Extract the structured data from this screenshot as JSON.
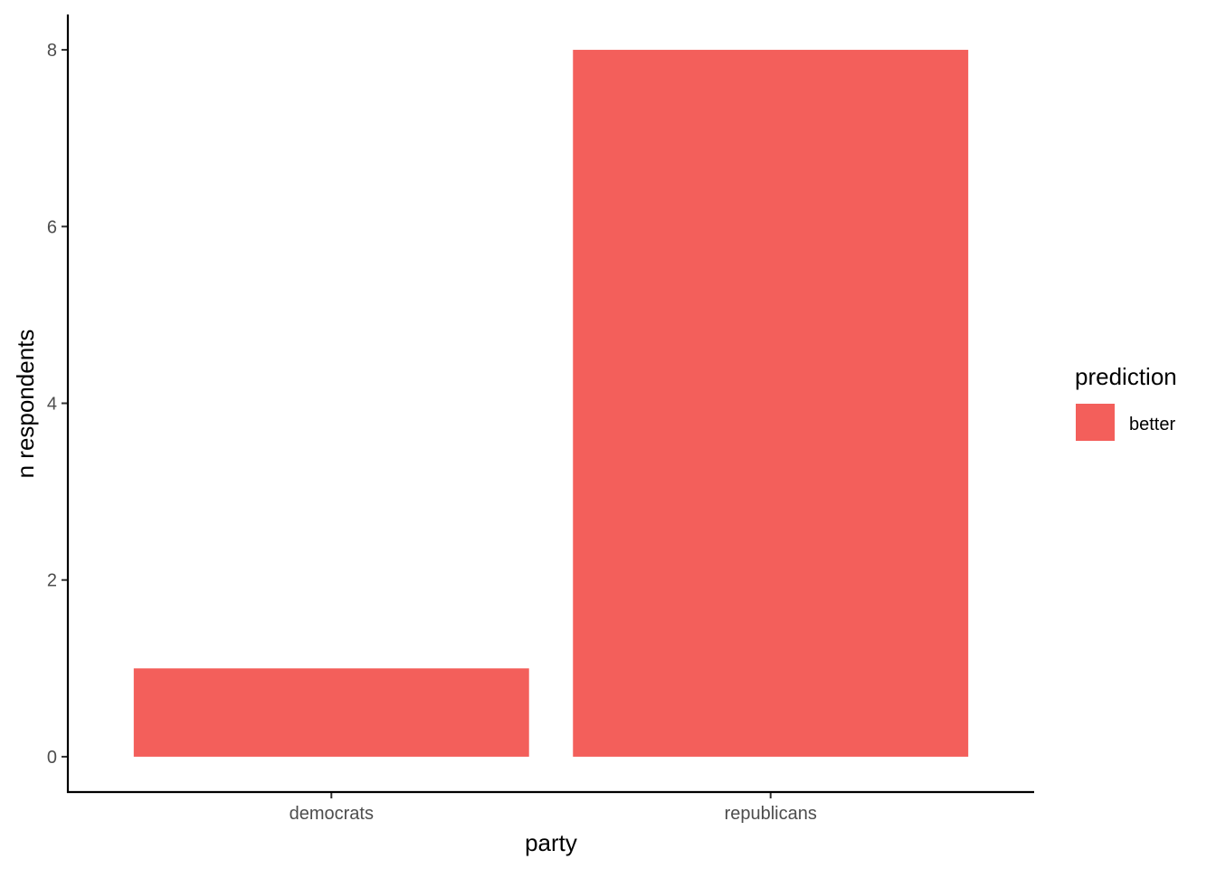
{
  "chart_data": {
    "type": "bar",
    "categories": [
      "democrats",
      "republicans"
    ],
    "series": [
      {
        "name": "better",
        "values": [
          1,
          8
        ]
      }
    ],
    "title": "",
    "xlabel": "party",
    "ylabel": "n respondents",
    "ylim": [
      -0.4,
      8.4
    ],
    "yticks": [
      0,
      2,
      4,
      6,
      8
    ],
    "grid": false,
    "legend": {
      "title": "prediction",
      "position": "right"
    },
    "bar_color": "#F35F5B"
  }
}
